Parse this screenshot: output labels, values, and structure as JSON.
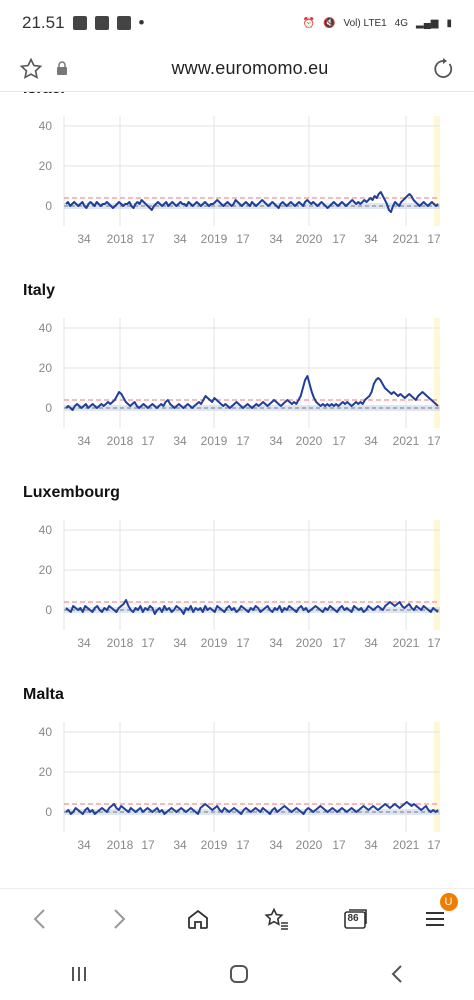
{
  "status_bar": {
    "time": "21.51",
    "network_label": "Vol) LTE1",
    "network_type": "4G"
  },
  "browser": {
    "url": "www.euromomo.eu",
    "tab_count": "86",
    "menu_badge": "U",
    "badge_color": "#f07d00"
  },
  "colors": {
    "series": "#1f3f99",
    "baseline_band": "#c9d3ea",
    "threshold": "#f4a3a3",
    "highlight": "#fff8d6"
  },
  "chart_data": [
    {
      "type": "line",
      "title": "Israel",
      "ylim": [
        -10,
        45
      ],
      "yticks": [
        0,
        20,
        40
      ],
      "xticks": [
        "34",
        "2018",
        "17",
        "34",
        "2019",
        "17",
        "34",
        "2020",
        "17",
        "34",
        "2021",
        "17"
      ],
      "threshold": 4,
      "series": [
        {
          "values": [
            1,
            2,
            0,
            1,
            2,
            1,
            0,
            1,
            2,
            0,
            -1,
            1,
            2,
            1,
            0,
            2,
            1,
            0,
            1,
            1,
            2,
            1,
            0,
            -1,
            0,
            1,
            2,
            1,
            0,
            1,
            1,
            2,
            0,
            -1,
            1,
            2,
            1,
            3,
            2,
            1,
            0,
            -1,
            -2,
            0,
            1,
            2,
            1,
            0,
            1,
            2,
            0,
            1,
            2,
            1,
            0,
            1,
            2,
            1,
            1,
            0,
            2,
            1,
            0,
            1,
            2,
            1,
            0,
            1,
            2,
            1,
            0,
            1,
            1,
            2,
            3,
            2,
            1,
            0,
            1,
            2,
            1,
            0,
            1,
            3,
            2,
            1,
            0,
            1,
            2,
            1,
            0,
            2,
            1,
            0,
            1,
            2,
            3,
            2,
            1,
            0,
            1,
            2,
            1,
            0,
            -1,
            1,
            2,
            1,
            0,
            1,
            2,
            1,
            0,
            1,
            2,
            1,
            0,
            2,
            3,
            2,
            1,
            2,
            1,
            0,
            1,
            2,
            1,
            0,
            -1,
            0,
            1,
            2,
            1,
            0,
            1,
            2,
            1,
            0,
            1,
            2,
            3,
            2,
            1,
            2,
            1,
            2,
            3,
            2,
            3,
            4,
            3,
            5,
            4,
            6,
            7,
            5,
            3,
            1,
            -2,
            -3,
            0,
            2,
            1,
            0,
            2,
            3,
            4,
            5,
            6,
            5,
            3,
            2,
            1,
            0,
            1,
            2,
            1,
            0,
            1,
            2,
            1,
            0,
            1
          ]
        }
      ]
    },
    {
      "type": "line",
      "title": "Italy",
      "ylim": [
        -10,
        45
      ],
      "yticks": [
        0,
        20,
        40
      ],
      "xticks": [
        "34",
        "2018",
        "17",
        "34",
        "2019",
        "17",
        "34",
        "2020",
        "17",
        "34",
        "2021",
        "17"
      ],
      "threshold": 4,
      "series": [
        {
          "values": [
            0,
            1,
            0,
            -1,
            1,
            2,
            1,
            0,
            1,
            2,
            0,
            1,
            2,
            1,
            0,
            1,
            2,
            1,
            2,
            3,
            2,
            3,
            4,
            6,
            8,
            7,
            5,
            3,
            2,
            1,
            2,
            3,
            1,
            0,
            1,
            2,
            1,
            0,
            1,
            2,
            1,
            0,
            1,
            2,
            1,
            3,
            4,
            2,
            1,
            0,
            1,
            2,
            1,
            0,
            1,
            2,
            1,
            0,
            1,
            2,
            3,
            2,
            4,
            6,
            5,
            4,
            3,
            5,
            4,
            3,
            2,
            1,
            2,
            1,
            0,
            1,
            2,
            3,
            2,
            1,
            0,
            1,
            2,
            1,
            0,
            1,
            2,
            1,
            2,
            3,
            2,
            1,
            2,
            3,
            4,
            3,
            2,
            1,
            2,
            3,
            4,
            3,
            2,
            3,
            2,
            4,
            6,
            10,
            14,
            16,
            12,
            8,
            5,
            3,
            2,
            1,
            2,
            1,
            2,
            1,
            2,
            1,
            2,
            1,
            2,
            3,
            2,
            3,
            2,
            1,
            2,
            3,
            2,
            3,
            2,
            4,
            5,
            6,
            8,
            12,
            14,
            15,
            14,
            12,
            10,
            9,
            8,
            7,
            8,
            7,
            6,
            7,
            6,
            5,
            6,
            7,
            6,
            5,
            4,
            6,
            7,
            8,
            7,
            6,
            5,
            4,
            3,
            2,
            1
          ]
        }
      ]
    },
    {
      "type": "line",
      "title": "Luxembourg",
      "ylim": [
        -10,
        45
      ],
      "yticks": [
        0,
        20,
        40
      ],
      "xticks": [
        "34",
        "2018",
        "17",
        "34",
        "2019",
        "17",
        "34",
        "2020",
        "17",
        "34",
        "2021",
        "17"
      ],
      "threshold": 4,
      "series": [
        {
          "values": [
            1,
            0,
            -1,
            2,
            1,
            0,
            1,
            -1,
            2,
            1,
            0,
            -1,
            1,
            2,
            0,
            -1,
            1,
            0,
            2,
            1,
            0,
            -1,
            1,
            2,
            3,
            5,
            2,
            0,
            -1,
            1,
            0,
            2,
            -1,
            1,
            0,
            2,
            1,
            -2,
            0,
            1,
            -1,
            2,
            0,
            1,
            -1,
            0,
            2,
            1,
            0,
            -2,
            1,
            0,
            2,
            -1,
            1,
            0,
            1,
            -1,
            2,
            0,
            1,
            0,
            -1,
            2,
            1,
            0,
            -1,
            1,
            2,
            0,
            1,
            -1,
            0,
            2,
            1,
            0,
            -1,
            1,
            0,
            2,
            1,
            -1,
            0,
            1,
            2,
            0,
            -1,
            1,
            0,
            2,
            -1,
            1,
            0,
            2,
            1,
            0,
            -1,
            1,
            2,
            0,
            1,
            -1,
            0,
            1,
            2,
            1,
            0,
            -1,
            1,
            0,
            2,
            1,
            0,
            -1,
            1,
            2,
            0,
            1,
            0,
            -1,
            2,
            1,
            0,
            1,
            -1,
            0,
            2,
            1,
            0,
            1,
            2,
            1,
            0,
            2,
            3,
            4,
            3,
            2,
            3,
            4,
            2,
            1,
            2,
            3,
            1,
            0,
            2,
            1,
            0,
            2,
            1,
            0,
            -1,
            1,
            0,
            -1
          ]
        }
      ]
    },
    {
      "type": "line",
      "title": "Malta",
      "ylim": [
        -10,
        45
      ],
      "yticks": [
        0,
        20,
        40
      ],
      "xticks": [
        "34",
        "2018",
        "17",
        "34",
        "2019",
        "17",
        "34",
        "2020",
        "17",
        "34",
        "2021",
        "17"
      ],
      "threshold": 4,
      "series": [
        {
          "values": [
            0,
            1,
            -1,
            0,
            2,
            1,
            0,
            -1,
            1,
            2,
            0,
            1,
            -1,
            0,
            1,
            2,
            1,
            0,
            2,
            3,
            4,
            2,
            1,
            3,
            2,
            1,
            0,
            2,
            1,
            0,
            1,
            2,
            0,
            1,
            2,
            1,
            0,
            1,
            2,
            0,
            1,
            -1,
            0,
            1,
            2,
            1,
            0,
            1,
            2,
            1,
            0,
            1,
            2,
            1,
            0,
            -1,
            2,
            3,
            4,
            3,
            2,
            1,
            2,
            3,
            1,
            0,
            2,
            1,
            0,
            1,
            2,
            1,
            0,
            -1,
            1,
            2,
            1,
            0,
            1,
            2,
            1,
            0,
            2,
            1,
            0,
            -1,
            1,
            2,
            0,
            1,
            2,
            3,
            2,
            1,
            0,
            1,
            2,
            1,
            0,
            -1,
            1,
            2,
            1,
            0,
            1,
            2,
            3,
            2,
            1,
            0,
            1,
            2,
            1,
            0,
            1,
            2,
            1,
            0,
            1,
            2,
            1,
            0,
            1,
            2,
            3,
            2,
            1,
            2,
            3,
            2,
            1,
            2,
            3,
            4,
            3,
            2,
            3,
            4,
            3,
            2,
            3,
            4,
            5,
            4,
            3,
            4,
            3,
            2,
            1,
            2,
            3,
            1,
            0,
            1,
            0,
            1
          ]
        }
      ]
    }
  ]
}
